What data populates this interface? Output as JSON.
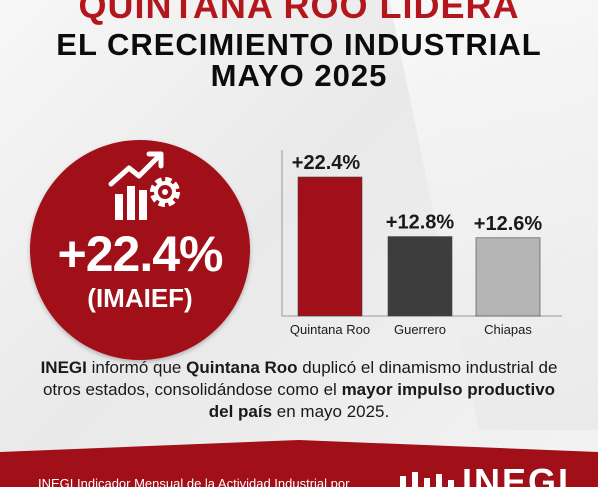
{
  "header": {
    "title_red": "QUINTANA ROO LIDERA",
    "title_line2": "EL CRECIMIENTO INDUSTRIAL",
    "title_line3": "MAYO 2025"
  },
  "highlight": {
    "icon": "industry-growth-icon",
    "value": "+22.4%",
    "label": "(IMAIEF)"
  },
  "chart_data": {
    "type": "bar",
    "categories": [
      "Quintana Roo",
      "Guerrero",
      "Chiapas"
    ],
    "values": [
      22.4,
      12.8,
      12.6
    ],
    "value_labels": [
      "+22.4%",
      "+12.8%",
      "+12.6%"
    ],
    "colors": [
      "#a10f18",
      "#3d3d3d",
      "#b5b5b5"
    ],
    "ylim": [
      0,
      25
    ],
    "title": "",
    "xlabel": "",
    "ylabel": "",
    "grid": false
  },
  "description": {
    "p1": "INEGI",
    "p2": " informó que ",
    "p3": "Quintana Roo",
    "p4": " duplicó el dinamismo industrial de otros estados, consolidándose como el ",
    "p5": "mayor impulso productivo del país",
    "p6": " en mayo 2025."
  },
  "footer": {
    "source": "INEGI Indicador Mensual de la Actividad Industrial por",
    "logo": "INEGI",
    "accent": "#a10f18"
  }
}
